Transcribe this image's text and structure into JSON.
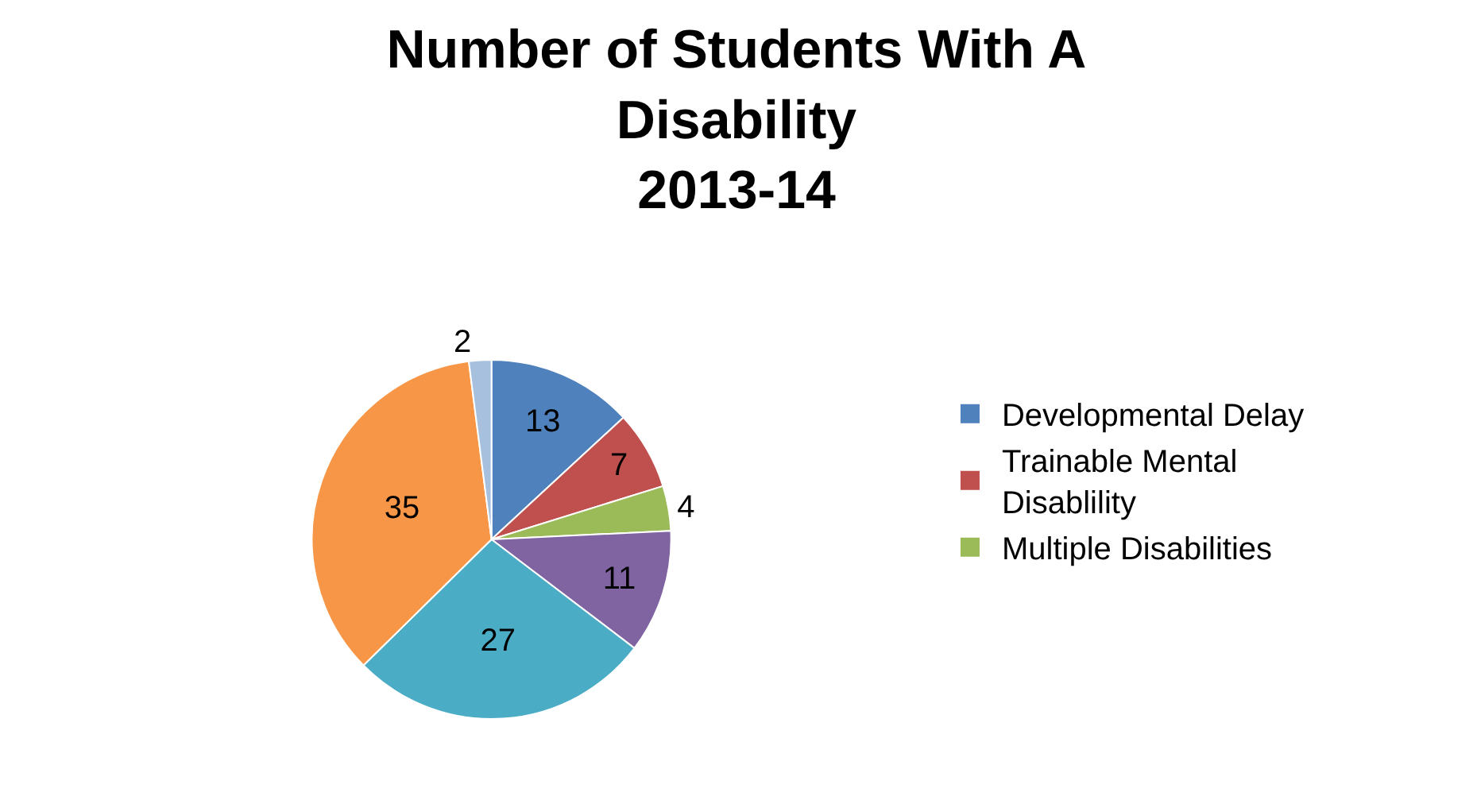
{
  "chart_data": {
    "type": "pie",
    "title": "Number of Students With A Disability\n2013-14",
    "categories": [
      "Developmental Delay",
      "Trainable Mental Disablility",
      "Multiple Disabilities",
      null,
      null,
      null,
      null
    ],
    "values": [
      13,
      7,
      4,
      11,
      27,
      35,
      2
    ],
    "colors": [
      "#4f81bd",
      "#c0504d",
      "#9bbb59",
      "#8064a2",
      "#4bacc6",
      "#f79646",
      "#a7c0de"
    ],
    "data_labels": true,
    "legend": "right"
  }
}
